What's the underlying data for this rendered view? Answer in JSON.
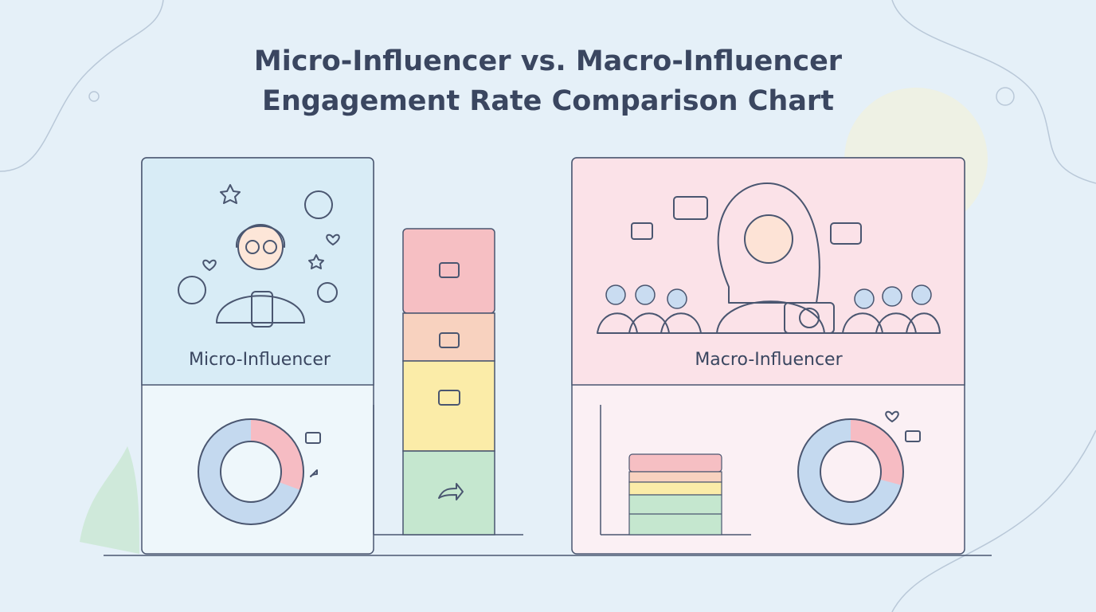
{
  "header": {
    "title_lines": [
      "Micro-Influencer vs. Macro-Influencer",
      "Engagement Rate Comparison Chart"
    ]
  },
  "cards": [
    {
      "label": "Micro-Influencer"
    },
    {
      "label": "Macro-Influencer"
    }
  ]
}
